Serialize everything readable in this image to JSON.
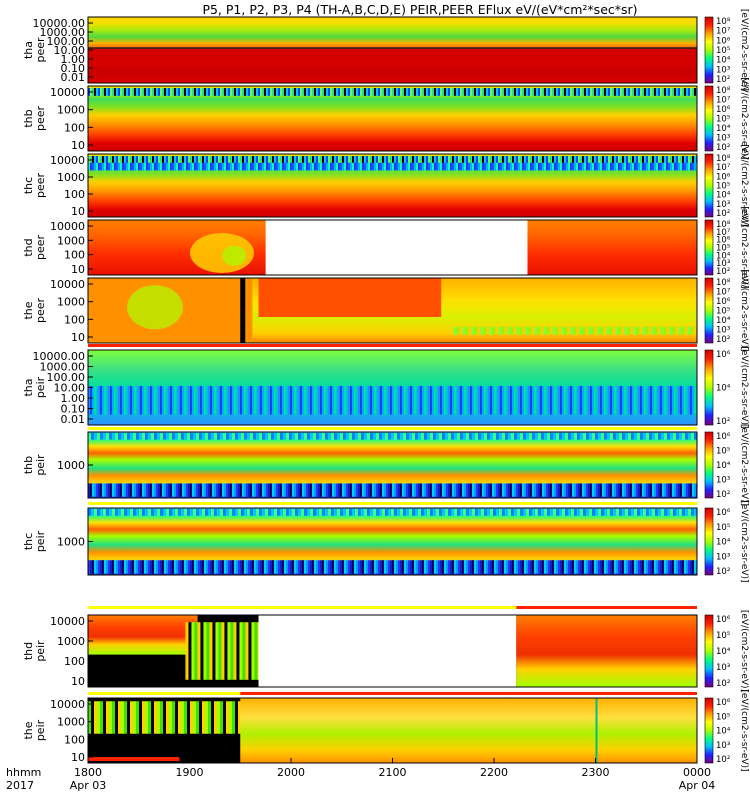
{
  "chart_data": {
    "type": "heatmap",
    "title": "P5, P1, P2, P3, P4 (TH-A,B,C,D,E) PEIR,PEER EFlux eV/(eV*cm²*sec*sr)",
    "x_axis": {
      "label_line1": "hhmm",
      "label_line2": "2017",
      "ticks": [
        {
          "value": "1800",
          "sub": "Apr 03"
        },
        {
          "value": "1900",
          "sub": ""
        },
        {
          "value": "2000",
          "sub": ""
        },
        {
          "value": "2100",
          "sub": ""
        },
        {
          "value": "2200",
          "sub": ""
        },
        {
          "value": "2300",
          "sub": ""
        },
        {
          "value": "0000",
          "sub": "Apr 04"
        }
      ],
      "range": [
        "2017-04-03 18:00",
        "2017-04-04 00:00"
      ]
    },
    "colorbar": {
      "colors": [
        "#7a007f",
        "#2020ff",
        "#00bfff",
        "#00ff7f",
        "#a8ff00",
        "#ffff00",
        "#ff9f00",
        "#ff2000",
        "#d00000"
      ],
      "vertical_label": "[eV/(cm2-s-sr-eV)]"
    },
    "panels": [
      {
        "line1": "tha",
        "line2": "peer",
        "ylabels": [
          "10000.00",
          "1000.00",
          "100.00",
          "10.00",
          "1.00",
          "0.10",
          "0.01"
        ],
        "cbar_ticks": [
          "10⁸",
          "10⁷",
          "10⁶",
          "10⁵",
          "10⁴",
          "10³",
          "10²"
        ]
      },
      {
        "line1": "thb",
        "line2": "peer",
        "ylabels": [
          "10000",
          "1000",
          "100",
          "10"
        ],
        "cbar_ticks": [
          "10⁸",
          "10⁷",
          "10⁶",
          "10⁵",
          "10⁴",
          "10³",
          "10²"
        ]
      },
      {
        "line1": "thc",
        "line2": "peer",
        "ylabels": [
          "10000",
          "1000",
          "100",
          "10"
        ],
        "cbar_ticks": [
          "10⁸",
          "10⁷",
          "10⁶",
          "10⁵",
          "10⁴",
          "10³",
          "10²"
        ]
      },
      {
        "line1": "thd",
        "line2": "peer",
        "ylabels": [
          "10000",
          "1000",
          "100",
          "10"
        ],
        "cbar_ticks": [
          "10⁸",
          "10⁷",
          "10⁶",
          "10⁵",
          "10⁴",
          "10³",
          "10²"
        ]
      },
      {
        "line1": "the",
        "line2": "peer",
        "ylabels": [
          "10000",
          "1000",
          "100",
          "10"
        ],
        "cbar_ticks": [
          "10⁸",
          "10⁷",
          "10⁶",
          "10⁵",
          "10⁴",
          "10³",
          "10²"
        ]
      },
      {
        "line1": "tha",
        "line2": "peir",
        "ylabels": [
          "10000.00",
          "1000.00",
          "100.00",
          "10.00",
          "1.00",
          "0.10",
          "0.01"
        ],
        "cbar_ticks": [
          "10⁶",
          "10⁴",
          "10²"
        ]
      },
      {
        "line1": "thb",
        "line2": "peir",
        "ylabels": [
          "1000"
        ],
        "cbar_ticks": [
          "10⁶",
          "10⁵",
          "10⁴",
          "10³",
          "10²"
        ]
      },
      {
        "line1": "thc",
        "line2": "peir",
        "ylabels": [
          "1000"
        ],
        "cbar_ticks": [
          "10⁶",
          "10⁵",
          "10⁴",
          "10³",
          "10²"
        ]
      },
      {
        "line1": "thd",
        "line2": "peir",
        "ylabels": [
          "10000",
          "1000",
          "100",
          "10"
        ],
        "cbar_ticks": [
          "10⁶",
          "10⁵",
          "10⁴",
          "10³",
          "10²"
        ]
      },
      {
        "line1": "the",
        "line2": "peir",
        "ylabels": [
          "10000",
          "1000",
          "100",
          "10"
        ],
        "cbar_ticks": [
          "10⁶",
          "10⁵",
          "10⁴",
          "10³",
          "10²"
        ]
      }
    ]
  }
}
